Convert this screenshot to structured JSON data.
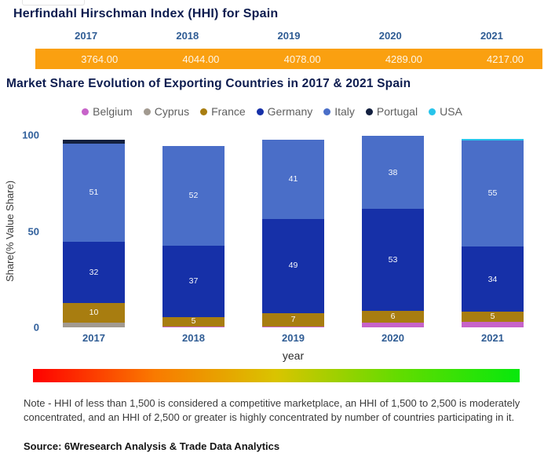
{
  "hhi": {
    "title": "Herfindahl Hirschman Index (HHI) for Spain",
    "years": [
      "2017",
      "2018",
      "2019",
      "2020",
      "2021"
    ],
    "values": [
      "3764.00",
      "4044.00",
      "4078.00",
      "4289.00",
      "4217.00"
    ],
    "bar_color": "#faa010"
  },
  "chart_data": {
    "type": "bar",
    "variant": "stacked-column",
    "title": "Market Share Evolution of Exporting Countries in 2017 & 2021 Spain",
    "categories": [
      "2017",
      "2018",
      "2019",
      "2020",
      "2021"
    ],
    "series": [
      {
        "name": "Belgium",
        "color": "#c763c9",
        "values": [
          0,
          0.5,
          0.5,
          2.5,
          3
        ]
      },
      {
        "name": "Cyprus",
        "color": "#a29a90",
        "values": [
          2.5,
          0,
          0,
          0,
          0
        ]
      },
      {
        "name": "France",
        "color": "#a87d10",
        "values": [
          10,
          5,
          7,
          6,
          5
        ]
      },
      {
        "name": "Germany",
        "color": "#1630a8",
        "values": [
          32,
          37,
          49,
          53,
          34
        ]
      },
      {
        "name": "Italy",
        "color": "#4a6ec8",
        "values": [
          51,
          52,
          41,
          38,
          55
        ]
      },
      {
        "name": "Portugal",
        "color": "#13203f",
        "values": [
          2,
          0,
          0,
          0,
          0
        ]
      },
      {
        "name": "USA",
        "color": "#27c4eb",
        "values": [
          0,
          0,
          0,
          0,
          1
        ]
      }
    ],
    "label_min": 5,
    "ylabel": "Share(% Value Share)",
    "xlabel": "year",
    "yticks": [
      0,
      50,
      100
    ],
    "ylim": [
      0,
      100
    ],
    "grid": false,
    "legend_position": "top-center"
  },
  "gradient": {
    "colors": [
      "#ff0000",
      "#f97a00",
      "#d9c400",
      "#63dc00",
      "#07e80c"
    ]
  },
  "note": "Note - HHI of less than 1,500 is considered a competitive marketplace, an HHI of 1,500 to 2,500 is moderately concentrated, and an HHI of 2,500 or greater is highly concentrated by number of countries participating in it.",
  "source": "Source: 6Wresearch Analysis & Trade Data Analytics"
}
